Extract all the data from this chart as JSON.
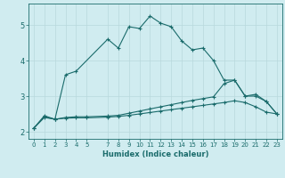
{
  "xlabel": "Humidex (Indice chaleur)",
  "background_color": "#d0ecf0",
  "grid_color": "#b8d8dc",
  "line_color": "#1a6b6b",
  "xlim": [
    -0.5,
    23.5
  ],
  "ylim": [
    1.8,
    5.6
  ],
  "xticks": [
    0,
    1,
    2,
    3,
    4,
    5,
    7,
    8,
    9,
    10,
    11,
    12,
    13,
    14,
    15,
    16,
    17,
    18,
    19,
    20,
    21,
    22,
    23
  ],
  "yticks": [
    2,
    3,
    4,
    5
  ],
  "line1_x": [
    0,
    1,
    2,
    3,
    4,
    7,
    8,
    9,
    10,
    11,
    12,
    13,
    14,
    15,
    16,
    17,
    18,
    19,
    20,
    21,
    22,
    23
  ],
  "line1_y": [
    2.1,
    2.45,
    2.35,
    3.6,
    3.7,
    4.6,
    4.35,
    4.95,
    4.9,
    5.25,
    5.05,
    4.95,
    4.55,
    4.3,
    4.35,
    4.0,
    3.45,
    3.45,
    3.0,
    3.05,
    2.85,
    2.5
  ],
  "line2_x": [
    0,
    1,
    2,
    3,
    4,
    5,
    7,
    8,
    9,
    10,
    11,
    12,
    13,
    14,
    15,
    16,
    17,
    18,
    19,
    20,
    21,
    22,
    23
  ],
  "line2_y": [
    2.1,
    2.42,
    2.35,
    2.4,
    2.42,
    2.42,
    2.44,
    2.46,
    2.52,
    2.58,
    2.64,
    2.7,
    2.76,
    2.82,
    2.88,
    2.93,
    2.98,
    3.35,
    3.45,
    3.0,
    3.0,
    2.85,
    2.5
  ],
  "line3_x": [
    0,
    1,
    2,
    3,
    4,
    5,
    7,
    8,
    9,
    10,
    11,
    12,
    13,
    14,
    15,
    16,
    17,
    18,
    19,
    20,
    21,
    22,
    23
  ],
  "line3_y": [
    2.1,
    2.4,
    2.35,
    2.38,
    2.39,
    2.39,
    2.41,
    2.43,
    2.46,
    2.5,
    2.54,
    2.58,
    2.62,
    2.66,
    2.7,
    2.74,
    2.78,
    2.82,
    2.87,
    2.82,
    2.7,
    2.55,
    2.5
  ]
}
